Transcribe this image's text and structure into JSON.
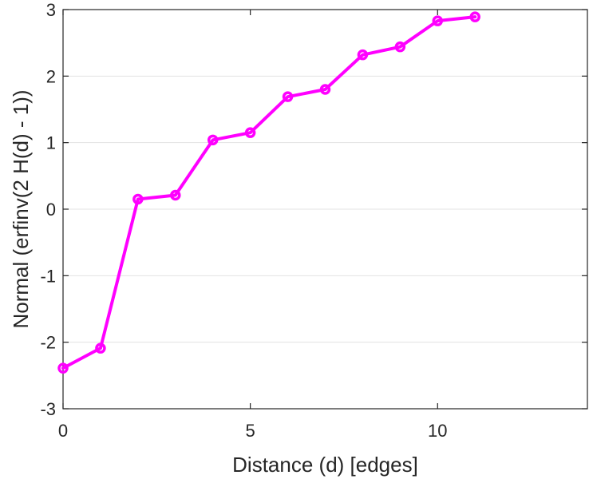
{
  "chart_data": {
    "type": "line",
    "title": "",
    "xlabel": "Distance (d) [edges]",
    "ylabel": "Normal (erfinv(2 H(d) - 1))",
    "xlim": [
      0,
      14
    ],
    "ylim": [
      -3,
      3
    ],
    "xticks": [
      0,
      5,
      10
    ],
    "yticks": [
      -3,
      -2,
      -1,
      0,
      1,
      2,
      3
    ],
    "xtick_labels": [
      "0",
      "5",
      "10"
    ],
    "ytick_labels": [
      "-3",
      "-2",
      "-1",
      "0",
      "1",
      "2",
      "3"
    ],
    "grid": "horizontal",
    "series": [
      {
        "color": "#ff00ff",
        "marker": "circle",
        "x": [
          0,
          1,
          2,
          3,
          4,
          5,
          6,
          7,
          8,
          9,
          10,
          11
        ],
        "y": [
          -2.39,
          -2.09,
          0.15,
          0.21,
          1.04,
          1.15,
          1.69,
          1.8,
          2.32,
          2.44,
          2.83,
          2.89
        ]
      }
    ]
  }
}
